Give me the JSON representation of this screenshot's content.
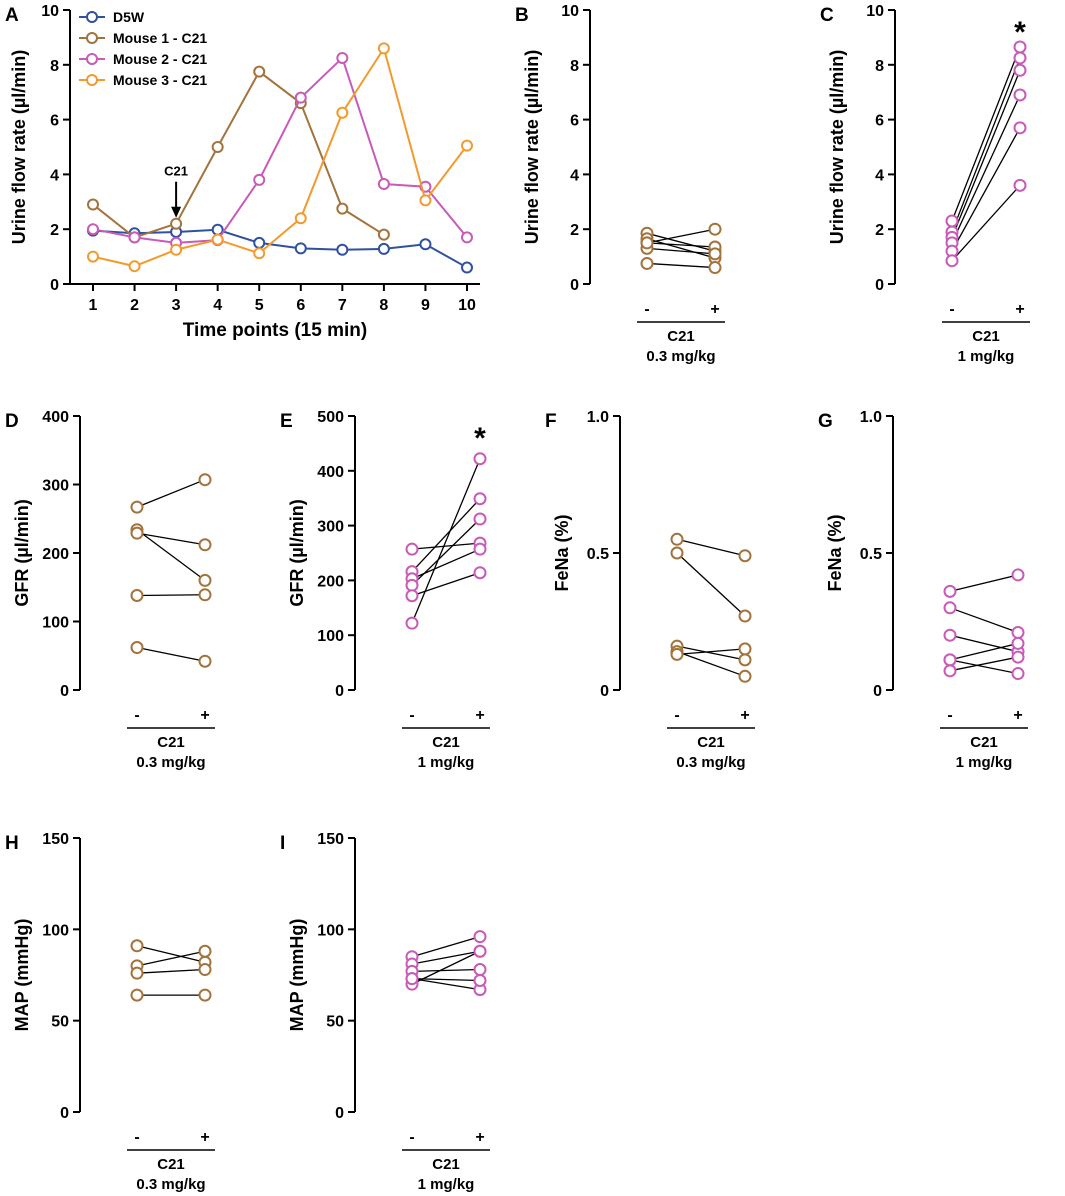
{
  "chart_data": [
    {
      "id": "A",
      "panel_label": "A",
      "type": "line",
      "x": [
        "1",
        "2",
        "3",
        "4",
        "5",
        "6",
        "7",
        "8",
        "9",
        "10"
      ],
      "xlabel": "Time points (15 min)",
      "ylabel": "Urine flow rate (µl/min)",
      "ylim": [
        0,
        10
      ],
      "yticks": [
        "0",
        "2",
        "4",
        "6",
        "8",
        "10"
      ],
      "annotation": {
        "text": "C21",
        "x": 3,
        "y": 2.2
      },
      "legend_position": "top-left",
      "series": [
        {
          "name": "D5W",
          "color": "#3050a0",
          "values": [
            1.95,
            1.85,
            1.9,
            1.98,
            1.5,
            1.3,
            1.25,
            1.28,
            1.45,
            0.6
          ]
        },
        {
          "name": "Mouse 1 - C21",
          "color": "#a3733c",
          "values": [
            2.9,
            1.7,
            2.2,
            5.0,
            7.75,
            6.6,
            2.75,
            1.8,
            null,
            null
          ]
        },
        {
          "name": "Mouse 2 - C21",
          "color": "#c85ab8",
          "values": [
            2.0,
            1.7,
            1.5,
            1.6,
            3.8,
            6.8,
            8.25,
            3.65,
            3.55,
            1.7
          ]
        },
        {
          "name": "Mouse 3 - C21",
          "color": "#f29a2e",
          "values": [
            1.0,
            0.65,
            1.25,
            1.62,
            1.12,
            2.4,
            6.25,
            8.6,
            3.05,
            5.05
          ]
        }
      ]
    },
    {
      "id": "B",
      "panel_label": "B",
      "type": "paired",
      "color": "#a3733c",
      "ylabel": "Urine flow rate (µl/min)",
      "ylim": [
        0,
        10
      ],
      "yticks": [
        "0",
        "2",
        "4",
        "6",
        "8",
        "10"
      ],
      "categories": [
        "-",
        "+"
      ],
      "treatment": "C21",
      "dose": "0.3 mg/kg",
      "significance": "",
      "pairs": [
        [
          1.85,
          1.2
        ],
        [
          1.65,
          0.95
        ],
        [
          1.5,
          1.35
        ],
        [
          1.3,
          1.1
        ],
        [
          0.75,
          0.6
        ],
        [
          1.5,
          2.0
        ]
      ]
    },
    {
      "id": "C",
      "panel_label": "C",
      "type": "paired",
      "color": "#c85ab8",
      "ylabel": "Urine flow rate (µl/min)",
      "ylim": [
        0,
        10
      ],
      "yticks": [
        "0",
        "2",
        "4",
        "6",
        "8",
        "10"
      ],
      "categories": [
        "-",
        "+"
      ],
      "treatment": "C21",
      "dose": "1 mg/kg",
      "significance": "*",
      "pairs": [
        [
          2.3,
          8.65
        ],
        [
          1.9,
          8.25
        ],
        [
          1.7,
          7.8
        ],
        [
          1.5,
          6.9
        ],
        [
          1.2,
          5.7
        ],
        [
          0.85,
          3.6
        ]
      ]
    },
    {
      "id": "D",
      "panel_label": "D",
      "type": "paired",
      "color": "#a3733c",
      "ylabel": "GFR (µl/min)",
      "ylim": [
        0,
        400
      ],
      "yticks": [
        "0",
        "100",
        "200",
        "300",
        "400"
      ],
      "categories": [
        "-",
        "+"
      ],
      "treatment": "C21",
      "dose": "0.3 mg/kg",
      "significance": "",
      "pairs": [
        [
          267,
          307
        ],
        [
          234,
          160
        ],
        [
          229,
          212
        ],
        [
          138,
          139
        ],
        [
          62,
          42
        ]
      ]
    },
    {
      "id": "E",
      "panel_label": "E",
      "type": "paired",
      "color": "#c85ab8",
      "ylabel": "GFR (µl/min)",
      "ylim": [
        0,
        500
      ],
      "yticks": [
        "0",
        "100",
        "200",
        "300",
        "400",
        "500"
      ],
      "categories": [
        "-",
        "+"
      ],
      "treatment": "C21",
      "dose": "1 mg/kg",
      "significance": "*",
      "pairs": [
        [
          257,
          268
        ],
        [
          216,
          349
        ],
        [
          203,
          257
        ],
        [
          191,
          312
        ],
        [
          172,
          214
        ],
        [
          122,
          422
        ]
      ]
    },
    {
      "id": "F",
      "panel_label": "F",
      "type": "paired",
      "color": "#a3733c",
      "ylabel": "FeNa (%)",
      "ylim": [
        0,
        1
      ],
      "yticks": [
        "0",
        "0.5",
        "1.0"
      ],
      "categories": [
        "-",
        "+"
      ],
      "treatment": "C21",
      "dose": "0.3 mg/kg",
      "significance": "",
      "pairs": [
        [
          0.55,
          0.49
        ],
        [
          0.5,
          0.27
        ],
        [
          0.16,
          0.11
        ],
        [
          0.14,
          0.05
        ],
        [
          0.13,
          0.15
        ]
      ]
    },
    {
      "id": "G",
      "panel_label": "G",
      "type": "paired",
      "color": "#c85ab8",
      "ylabel": "FeNa (%)",
      "ylim": [
        0,
        1
      ],
      "yticks": [
        "0",
        "0.5",
        "1.0"
      ],
      "categories": [
        "-",
        "+"
      ],
      "treatment": "C21",
      "dose": "1 mg/kg",
      "significance": "",
      "pairs": [
        [
          0.36,
          0.42
        ],
        [
          0.3,
          0.21
        ],
        [
          0.2,
          0.14
        ],
        [
          0.11,
          0.06
        ],
        [
          0.11,
          0.17
        ],
        [
          0.07,
          0.12
        ]
      ]
    },
    {
      "id": "H",
      "panel_label": "H",
      "type": "paired",
      "color": "#a3733c",
      "ylabel": "MAP (mmHg)",
      "ylim": [
        0,
        150
      ],
      "yticks": [
        "0",
        "50",
        "100",
        "150"
      ],
      "categories": [
        "-",
        "+"
      ],
      "treatment": "C21",
      "dose": "0.3 mg/kg",
      "significance": "",
      "pairs": [
        [
          91,
          82
        ],
        [
          80,
          88
        ],
        [
          76,
          78
        ],
        [
          64,
          64
        ]
      ]
    },
    {
      "id": "I",
      "panel_label": "I",
      "type": "paired",
      "color": "#c85ab8",
      "ylabel": "MAP (mmHg)",
      "ylim": [
        0,
        150
      ],
      "yticks": [
        "0",
        "50",
        "100",
        "150"
      ],
      "categories": [
        "-",
        "+"
      ],
      "treatment": "C21",
      "dose": "1 mg/kg",
      "significance": "",
      "pairs": [
        [
          85,
          96
        ],
        [
          81,
          88
        ],
        [
          77,
          78
        ],
        [
          73,
          67
        ],
        [
          70,
          88
        ],
        [
          73,
          72
        ]
      ]
    }
  ]
}
